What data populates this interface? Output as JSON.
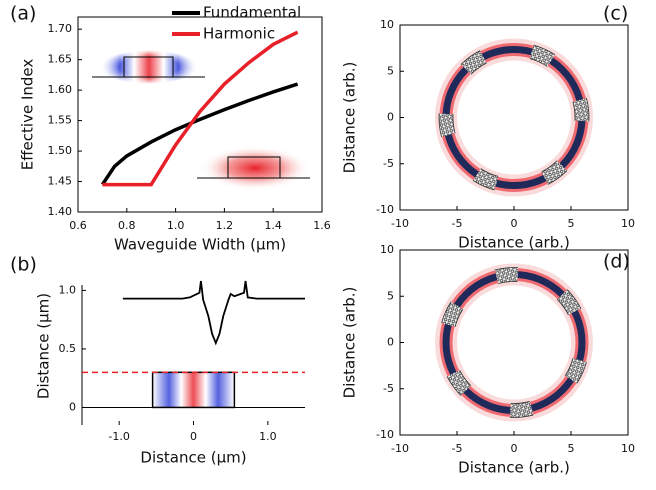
{
  "chart_data": [
    {
      "type": "line",
      "label": "(a)",
      "x_label": "Waveguide Width (µm)",
      "y_label": "Effective Index",
      "x": [
        0.7,
        0.75,
        0.8,
        0.9,
        1.0,
        1.1,
        1.2,
        1.3,
        1.4,
        1.5
      ],
      "series": [
        {
          "name": "Fundamental",
          "color": "#000000",
          "values": [
            1.445,
            1.475,
            1.492,
            1.515,
            1.535,
            1.552,
            1.568,
            1.583,
            1.597,
            1.61
          ]
        },
        {
          "name": "Harmonic",
          "color": "#e8202a",
          "values": [
            1.445,
            1.445,
            1.445,
            1.445,
            1.51,
            1.565,
            1.61,
            1.645,
            1.675,
            1.695
          ]
        }
      ],
      "xlim": [
        0.6,
        1.6
      ],
      "xticks": [
        0.6,
        0.8,
        {
          "value": 1,
          "label": "1.0"
        },
        1.2,
        1.4,
        1.6
      ],
      "ylim": [
        1.4,
        1.72
      ],
      "yticks": [
        {
          "value": 1.4,
          "label": "1.40"
        },
        1.45,
        {
          "value": 1.5,
          "label": "1.50"
        },
        1.55,
        {
          "value": 1.6,
          "label": "1.60"
        },
        1.65,
        {
          "value": 1.7,
          "label": "1.70"
        }
      ]
    },
    {
      "type": "line",
      "label": "(b)",
      "x_label": "Distance (µm)",
      "y_label": "Distance (µm)",
      "x": [
        -0.95,
        -0.15,
        -0.05,
        0.08,
        0.1,
        0.13,
        0.2,
        0.25,
        0.3,
        0.35,
        0.4,
        0.47,
        0.5,
        0.55,
        0.68,
        0.7,
        0.73,
        0.85,
        1.5
      ],
      "series": [
        {
          "color": "#000000",
          "values": [
            0.93,
            0.93,
            0.94,
            0.98,
            1.08,
            0.92,
            0.78,
            0.63,
            0.55,
            0.63,
            0.78,
            0.92,
            0.97,
            0.95,
            0.98,
            1.08,
            0.94,
            0.93,
            0.93
          ]
        }
      ],
      "reference_line": 0.3,
      "reference_color": "#e8202a",
      "waveguide": {
        "x": [
          -0.55,
          0.55
        ],
        "y": [
          0,
          0.3
        ]
      },
      "xlim": [
        -1.5,
        1.5
      ],
      "xticks": [
        {
          "value": -1,
          "label": "-1.0"
        },
        0,
        {
          "value": 1,
          "label": "1.0"
        }
      ],
      "ylim": [
        -0.15,
        1.2
      ],
      "yticks": [
        0,
        0.5,
        {
          "value": 1,
          "label": "1.0"
        }
      ]
    },
    {
      "type": "field",
      "label": "(c)",
      "x_label": "Distance (arb.)",
      "y_label": "Distance (arb.)",
      "xlim": [
        -10,
        10
      ],
      "xticks": [
        -10,
        -5,
        0,
        5,
        10
      ],
      "ylim": [
        -10,
        10
      ],
      "yticks": [
        -10,
        -5,
        0,
        5,
        10
      ]
    },
    {
      "type": "field",
      "label": "(d)",
      "x_label": "Distance (arb.)",
      "y_label": "Distance (arb.)",
      "xlim": [
        -10,
        10
      ],
      "xticks": [
        -10,
        -5,
        0,
        5,
        10
      ],
      "ylim": [
        -10,
        10
      ],
      "yticks": [
        -10,
        -5,
        0,
        5,
        10
      ]
    }
  ]
}
